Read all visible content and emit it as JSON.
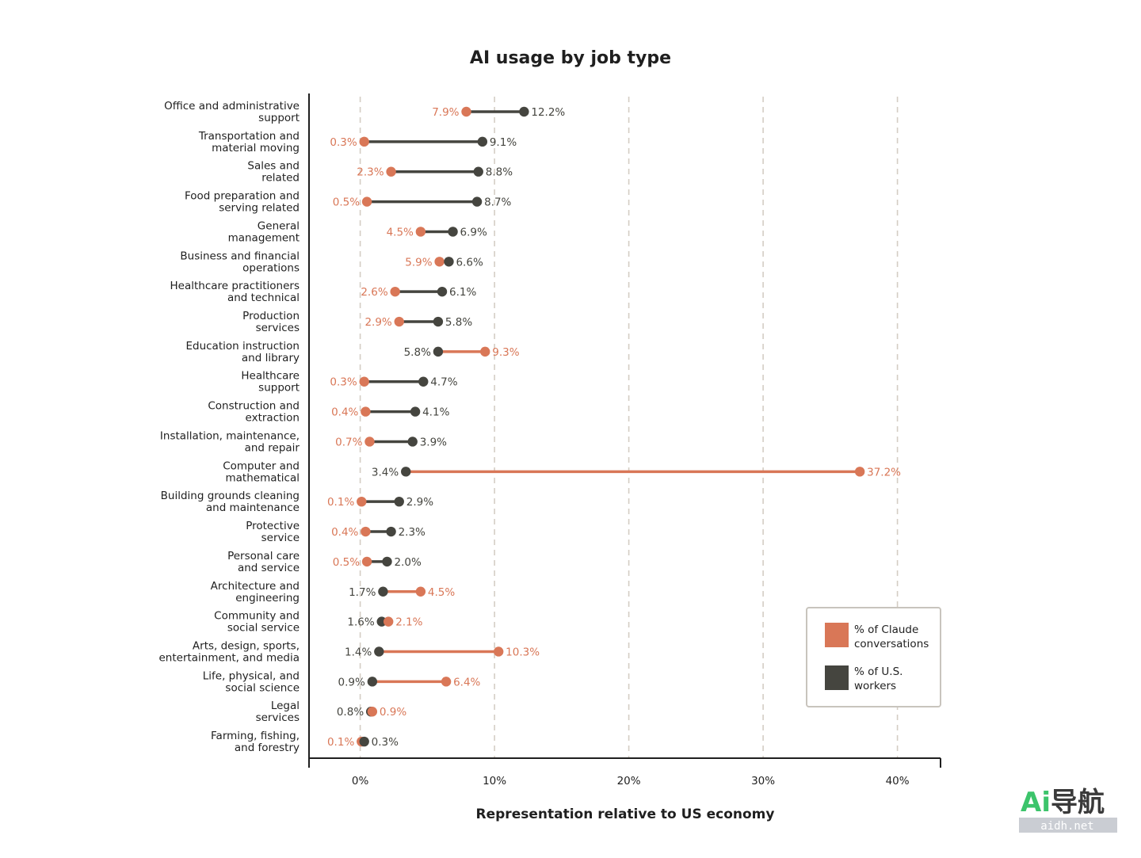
{
  "colors": {
    "claude": "#d97757",
    "workers": "#45453f",
    "grid": "#d4cdc4",
    "axis": "#1f1f1f",
    "legend_border": "#c8c4bd"
  },
  "legend": {
    "claude_lines": [
      "% of Claude",
      "conversations"
    ],
    "workers_lines": [
      "% of U.S.",
      "workers"
    ]
  },
  "watermark": {
    "logo_text": "Ai导航",
    "sub_text": "aidh.net"
  },
  "chart_data": {
    "type": "dumbbell",
    "title": "AI usage by job type",
    "xlabel": "Representation relative to US economy",
    "xlim": [
      -3.8,
      43.2
    ],
    "xticks": [
      0,
      10,
      20,
      30,
      40
    ],
    "xtick_labels": [
      "0%",
      "10%",
      "20%",
      "30%",
      "40%"
    ],
    "grid": "vertical dashed",
    "legend_position": "bottom-right",
    "series_names": [
      "% of Claude conversations",
      "% of U.S. workers"
    ],
    "categories": [
      {
        "lines": [
          "Office and administrative",
          "support"
        ],
        "claude": 7.9,
        "workers": 12.2
      },
      {
        "lines": [
          "Transportation and",
          "material moving"
        ],
        "claude": 0.3,
        "workers": 9.1
      },
      {
        "lines": [
          "Sales and",
          "related"
        ],
        "claude": 2.3,
        "workers": 8.8
      },
      {
        "lines": [
          "Food preparation and",
          "serving related"
        ],
        "claude": 0.5,
        "workers": 8.7
      },
      {
        "lines": [
          "General",
          "management"
        ],
        "claude": 4.5,
        "workers": 6.9
      },
      {
        "lines": [
          "Business and financial",
          "operations"
        ],
        "claude": 5.9,
        "workers": 6.6
      },
      {
        "lines": [
          "Healthcare practitioners",
          "and technical"
        ],
        "claude": 2.6,
        "workers": 6.1
      },
      {
        "lines": [
          "Production",
          "services"
        ],
        "claude": 2.9,
        "workers": 5.8
      },
      {
        "lines": [
          "Education instruction",
          "and library"
        ],
        "claude": 9.3,
        "workers": 5.8
      },
      {
        "lines": [
          "Healthcare",
          "support"
        ],
        "claude": 0.3,
        "workers": 4.7
      },
      {
        "lines": [
          "Construction and",
          "extraction"
        ],
        "claude": 0.4,
        "workers": 4.1
      },
      {
        "lines": [
          "Installation, maintenance,",
          "and repair"
        ],
        "claude": 0.7,
        "workers": 3.9
      },
      {
        "lines": [
          "Computer and",
          "mathematical"
        ],
        "claude": 37.2,
        "workers": 3.4
      },
      {
        "lines": [
          "Building grounds cleaning",
          "and maintenance"
        ],
        "claude": 0.1,
        "workers": 2.9
      },
      {
        "lines": [
          "Protective",
          "service"
        ],
        "claude": 0.4,
        "workers": 2.3
      },
      {
        "lines": [
          "Personal care",
          "and service"
        ],
        "claude": 0.5,
        "workers": 2.0
      },
      {
        "lines": [
          "Architecture and",
          "engineering"
        ],
        "claude": 4.5,
        "workers": 1.7
      },
      {
        "lines": [
          "Community and",
          "social service"
        ],
        "claude": 2.1,
        "workers": 1.6
      },
      {
        "lines": [
          "Arts, design, sports,",
          "entertainment, and media"
        ],
        "claude": 10.3,
        "workers": 1.4
      },
      {
        "lines": [
          "Life, physical, and",
          "social science"
        ],
        "claude": 6.4,
        "workers": 0.9
      },
      {
        "lines": [
          "Legal",
          "services"
        ],
        "claude": 0.9,
        "workers": 0.8
      },
      {
        "lines": [
          "Farming, fishing,",
          "and forestry"
        ],
        "claude": 0.1,
        "workers": 0.3
      }
    ]
  }
}
